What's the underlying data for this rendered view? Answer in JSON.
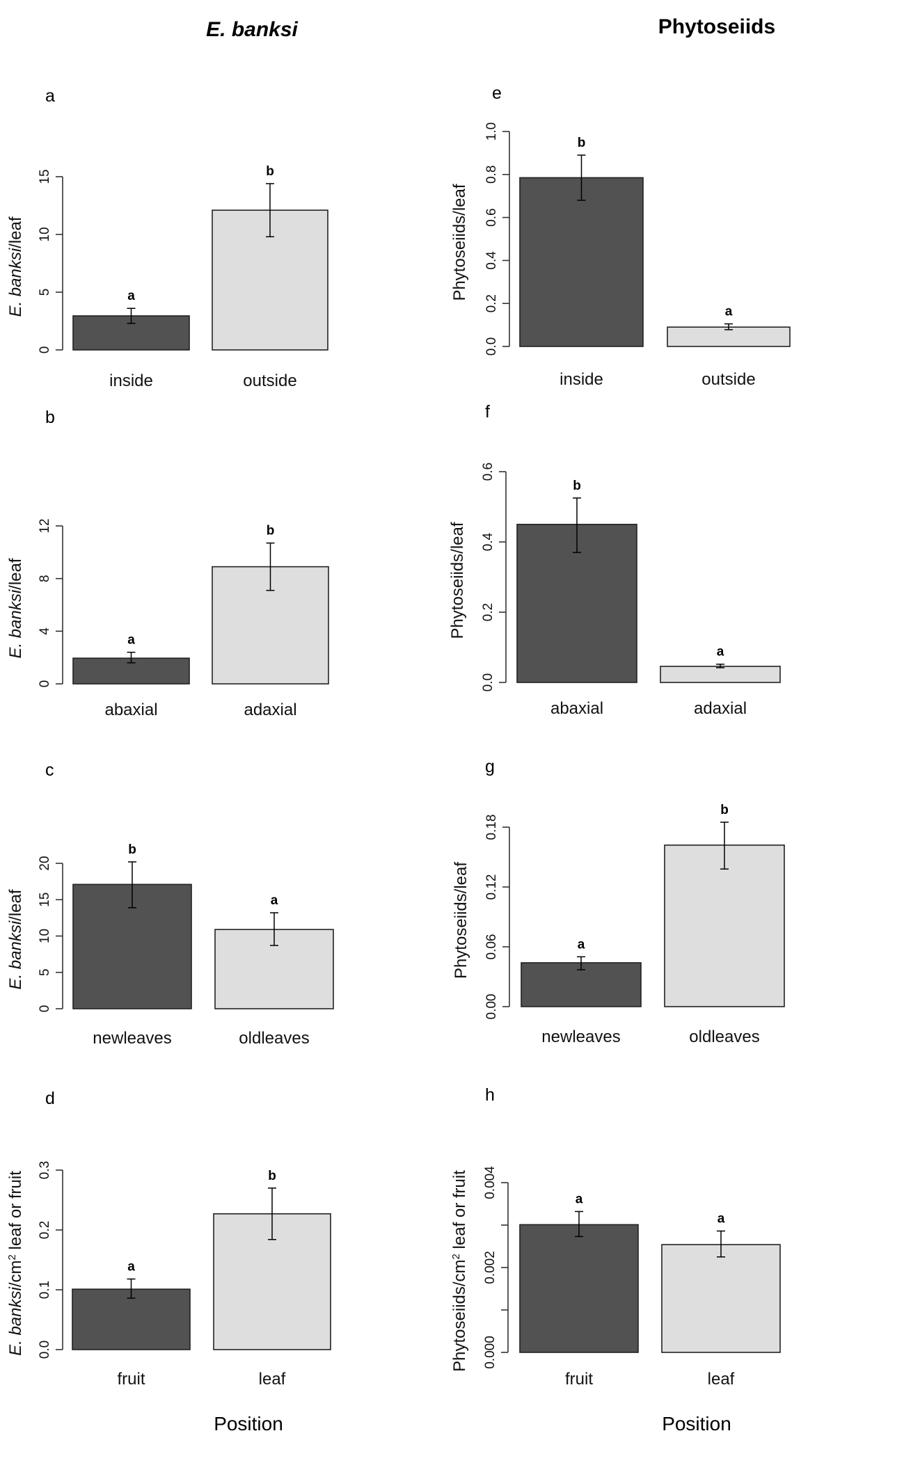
{
  "figure": {
    "column_titles": [
      {
        "text_italic": "E. banksi",
        "style": "bold-italic"
      },
      {
        "text": "Phytoseiids",
        "style": "bold"
      }
    ],
    "xlabel": "Position",
    "colors": {
      "dark_bar": "#525252",
      "light_bar": "#dedede",
      "axis": "#333333"
    }
  },
  "chart_data": [
    {
      "type": "bar",
      "panel": "a",
      "column": "E. banksi",
      "categories": [
        "inside",
        "outside"
      ],
      "values": [
        2.95,
        12.1
      ],
      "error_upper": [
        3.6,
        14.4
      ],
      "error_lower": [
        2.3,
        9.8
      ],
      "letters": [
        "a",
        "b"
      ],
      "ylabel_italic": "E. banksi",
      "ylabel_rest": "/leaf",
      "ylabel_sup": "",
      "ylabel_tail": "",
      "ylim": [
        0,
        15
      ],
      "ticks": [
        0,
        5,
        10,
        15
      ],
      "tick_labels": [
        "0",
        "5",
        "10",
        "15"
      ]
    },
    {
      "type": "bar",
      "panel": "b",
      "column": "E. banksi",
      "categories": [
        "abaxial",
        "adaxial"
      ],
      "values": [
        1.95,
        8.9
      ],
      "error_upper": [
        2.4,
        10.7
      ],
      "error_lower": [
        1.6,
        7.1
      ],
      "letters": [
        "a",
        "b"
      ],
      "ylabel_italic": "E. banksi",
      "ylabel_rest": "/leaf",
      "ylabel_sup": "",
      "ylabel_tail": "",
      "ylim": [
        0,
        12
      ],
      "ticks": [
        0,
        4,
        8,
        12
      ],
      "tick_labels": [
        "0",
        "4",
        "8",
        "12"
      ]
    },
    {
      "type": "bar",
      "panel": "c",
      "column": "E. banksi",
      "categories": [
        "newleaves",
        "oldleaves"
      ],
      "values": [
        17.1,
        10.9
      ],
      "error_upper": [
        20.2,
        13.2
      ],
      "error_lower": [
        13.9,
        8.7
      ],
      "letters": [
        "b",
        "a"
      ],
      "ylabel_italic": "E. banksi",
      "ylabel_rest": "/leaf",
      "ylabel_sup": "",
      "ylabel_tail": "",
      "ylim": [
        0,
        20
      ],
      "ticks": [
        0,
        5,
        10,
        15,
        20
      ],
      "tick_labels": [
        "0",
        "5",
        "10",
        "15",
        "20"
      ]
    },
    {
      "type": "bar",
      "panel": "d",
      "column": "E. banksi",
      "categories": [
        "fruit",
        "leaf"
      ],
      "values": [
        0.101,
        0.227
      ],
      "error_upper": [
        0.118,
        0.27
      ],
      "error_lower": [
        0.086,
        0.184
      ],
      "letters": [
        "a",
        "b"
      ],
      "ylabel_italic": "E. banksi",
      "ylabel_rest": "/cm",
      "ylabel_sup": "2",
      "ylabel_tail": " leaf or fruit",
      "ylim": [
        0,
        0.3
      ],
      "ticks": [
        0,
        0.1,
        0.2,
        0.3
      ],
      "tick_labels": [
        "0.0",
        "0.1",
        "0.2",
        "0.3"
      ]
    },
    {
      "type": "bar",
      "panel": "e",
      "column": "Phytoseiids",
      "categories": [
        "inside",
        "outside"
      ],
      "values": [
        0.785,
        0.09
      ],
      "error_upper": [
        0.89,
        0.105
      ],
      "error_lower": [
        0.68,
        0.078
      ],
      "letters": [
        "b",
        "a"
      ],
      "ylabel_italic": "",
      "ylabel_rest": "Phytoseiids/leaf",
      "ylabel_sup": "",
      "ylabel_tail": "",
      "ylim": [
        0,
        1.0
      ],
      "ticks": [
        0,
        0.2,
        0.4,
        0.6,
        0.8,
        1.0
      ],
      "tick_labels": [
        "0.0",
        "0.2",
        "0.4",
        "0.6",
        "0.8",
        "1.0"
      ]
    },
    {
      "type": "bar",
      "panel": "f",
      "column": "Phytoseiids",
      "categories": [
        "abaxial",
        "adaxial"
      ],
      "values": [
        0.45,
        0.046
      ],
      "error_upper": [
        0.525,
        0.052
      ],
      "error_lower": [
        0.37,
        0.042
      ],
      "letters": [
        "b",
        "a"
      ],
      "ylabel_italic": "",
      "ylabel_rest": "Phytoseiids/leaf",
      "ylabel_sup": "",
      "ylabel_tail": "",
      "ylim": [
        0,
        0.6
      ],
      "ticks": [
        0,
        0.2,
        0.4,
        0.6
      ],
      "tick_labels": [
        "0.0",
        "0.2",
        "0.4",
        "0.6"
      ]
    },
    {
      "type": "bar",
      "panel": "g",
      "column": "Phytoseiids",
      "categories": [
        "newleaves",
        "oldleaves"
      ],
      "values": [
        0.044,
        0.162
      ],
      "error_upper": [
        0.05,
        0.185
      ],
      "error_lower": [
        0.037,
        0.138
      ],
      "letters": [
        "a",
        "b"
      ],
      "ylabel_italic": "",
      "ylabel_rest": "Phytoseiids/leaf",
      "ylabel_sup": "",
      "ylabel_tail": "",
      "ylim": [
        0,
        0.18
      ],
      "ticks": [
        0,
        0.06,
        0.12,
        0.18
      ],
      "tick_labels": [
        "0.00",
        "0.06",
        "0.12",
        "0.18"
      ]
    },
    {
      "type": "bar",
      "panel": "h",
      "column": "Phytoseiids",
      "categories": [
        "fruit",
        "leaf"
      ],
      "values": [
        0.00301,
        0.00254
      ],
      "error_upper": [
        0.00332,
        0.00286
      ],
      "error_lower": [
        0.00273,
        0.00225
      ],
      "letters": [
        "a",
        "a"
      ],
      "ylabel_italic": "",
      "ylabel_rest": "Phytoseiids/cm",
      "ylabel_sup": "2",
      "ylabel_tail": " leaf or fruit",
      "ylim": [
        0,
        0.004
      ],
      "ticks": [
        0,
        0.001,
        0.002,
        0.003,
        0.004
      ],
      "tick_labels": [
        "0.000",
        "",
        "0.002",
        "",
        "0.004"
      ]
    }
  ]
}
